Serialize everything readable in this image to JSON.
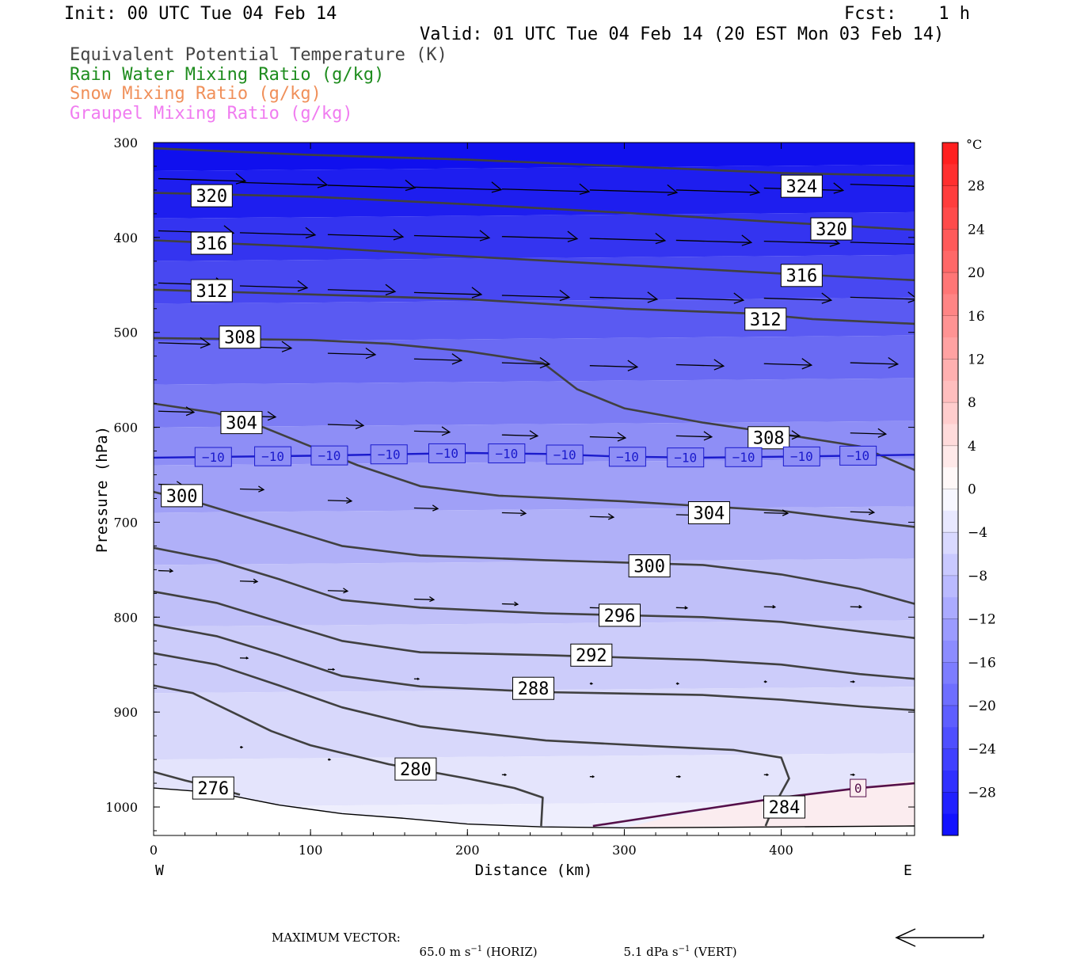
{
  "header": {
    "init": "Init: 00 UTC Tue 04 Feb 14",
    "fcst": "Fcst:    1 h",
    "valid": "Valid: 01 UTC Tue 04 Feb 14 (20 EST Mon 03 Feb 14)",
    "fields": [
      {
        "label": "Equivalent Potential Temperature (K)",
        "color": "#444444"
      },
      {
        "label": "Rain Water Mixing Ratio (g/kg)",
        "color": "#1e8c1e"
      },
      {
        "label": "Snow Mixing Ratio (g/kg)",
        "color": "#f0905a"
      },
      {
        "label": "Graupel Mixing Ratio (g/kg)",
        "color": "#f07cf0"
      }
    ]
  },
  "chart_data": {
    "type": "cross-section",
    "xlabel": "Distance (km)",
    "ylabel": "Pressure (hPa)",
    "xlim": [
      0,
      485
    ],
    "ylim": [
      300,
      1030
    ],
    "y_log": false,
    "x_ticks": [
      0,
      100,
      200,
      300,
      400
    ],
    "y_ticks": [
      300,
      400,
      500,
      600,
      700,
      800,
      900,
      1000
    ],
    "x_end_labels": {
      "left": "W",
      "right": "E"
    },
    "colorbar": {
      "unit": "°C",
      "tick_labels": [
        "28",
        "24",
        "20",
        "16",
        "12",
        "8",
        "4",
        "0",
        "−4",
        "−8",
        "−12",
        "−16",
        "−20",
        "−24",
        "−28"
      ],
      "range": [
        -32,
        32
      ]
    },
    "theta_e_contours": [
      {
        "level": 324,
        "label": "324",
        "points": [
          [
            0,
            306
          ],
          [
            100,
            313
          ],
          [
            200,
            318
          ],
          [
            300,
            325
          ],
          [
            400,
            332
          ],
          [
            485,
            335
          ]
        ],
        "label_at": [
          413,
          346
        ]
      },
      {
        "level": 320,
        "label": "320",
        "points": [
          [
            0,
            353
          ],
          [
            100,
            357
          ],
          [
            200,
            365
          ],
          [
            300,
            374
          ],
          [
            400,
            384
          ],
          [
            485,
            392
          ]
        ],
        "label_at": [
          37,
          356
        ],
        "label_at2": [
          432,
          391
        ]
      },
      {
        "level": 316,
        "label": "316",
        "points": [
          [
            0,
            403
          ],
          [
            100,
            410
          ],
          [
            200,
            420
          ],
          [
            300,
            429
          ],
          [
            400,
            438
          ],
          [
            485,
            445
          ]
        ],
        "label_at": [
          37,
          406
        ],
        "label_at2": [
          413,
          440
        ]
      },
      {
        "level": 312,
        "label": "312",
        "points": [
          [
            0,
            455
          ],
          [
            100,
            460
          ],
          [
            200,
            465
          ],
          [
            300,
            475
          ],
          [
            380,
            480
          ],
          [
            420,
            486
          ],
          [
            485,
            491
          ]
        ],
        "label_at": [
          37,
          456
        ],
        "label_at2": [
          390,
          486
        ]
      },
      {
        "level": 308,
        "label": "308",
        "points": [
          [
            0,
            506
          ],
          [
            100,
            508
          ],
          [
            150,
            512
          ],
          [
            200,
            520
          ],
          [
            248,
            532
          ],
          [
            270,
            560
          ],
          [
            300,
            580
          ],
          [
            350,
            595
          ],
          [
            400,
            607
          ],
          [
            450,
            620
          ],
          [
            485,
            645
          ]
        ],
        "label_at": [
          55,
          505
        ],
        "label_at2": [
          392,
          611
        ]
      },
      {
        "level": 304,
        "label": "304",
        "points": [
          [
            0,
            575
          ],
          [
            40,
            585
          ],
          [
            70,
            600
          ],
          [
            100,
            620
          ],
          [
            130,
            640
          ],
          [
            170,
            662
          ],
          [
            220,
            672
          ],
          [
            300,
            678
          ],
          [
            400,
            688
          ],
          [
            485,
            705
          ]
        ],
        "label_at": [
          56,
          595
        ],
        "label_at2": [
          354,
          690
        ]
      },
      {
        "level": 300,
        "label": "300",
        "points": [
          [
            0,
            668
          ],
          [
            30,
            680
          ],
          [
            70,
            700
          ],
          [
            120,
            725
          ],
          [
            170,
            735
          ],
          [
            250,
            740
          ],
          [
            350,
            745
          ],
          [
            400,
            755
          ],
          [
            450,
            770
          ],
          [
            485,
            786
          ]
        ],
        "label_at": [
          18,
          672
        ],
        "label_at2": [
          316,
          746
        ]
      },
      {
        "level": 296,
        "label": "296",
        "points": [
          [
            0,
            727
          ],
          [
            40,
            740
          ],
          [
            80,
            760
          ],
          [
            120,
            782
          ],
          [
            170,
            790
          ],
          [
            250,
            796
          ],
          [
            350,
            800
          ],
          [
            400,
            805
          ],
          [
            450,
            815
          ],
          [
            485,
            822
          ]
        ],
        "label_at": [
          297,
          798
        ]
      },
      {
        "level": 292,
        "label": "292",
        "points": [
          [
            0,
            773
          ],
          [
            40,
            785
          ],
          [
            80,
            805
          ],
          [
            120,
            825
          ],
          [
            170,
            837
          ],
          [
            250,
            840
          ],
          [
            350,
            845
          ],
          [
            400,
            850
          ],
          [
            450,
            860
          ],
          [
            485,
            865
          ]
        ],
        "label_at": [
          279,
          840
        ]
      },
      {
        "level": 288,
        "label": "288",
        "points": [
          [
            0,
            808
          ],
          [
            40,
            820
          ],
          [
            80,
            840
          ],
          [
            120,
            862
          ],
          [
            170,
            873
          ],
          [
            250,
            879
          ],
          [
            350,
            882
          ],
          [
            400,
            887
          ],
          [
            450,
            894
          ],
          [
            485,
            898
          ]
        ],
        "label_at": [
          242,
          875
        ]
      },
      {
        "level": 284,
        "label": "284",
        "points": [
          [
            0,
            838
          ],
          [
            40,
            850
          ],
          [
            80,
            872
          ],
          [
            120,
            895
          ],
          [
            170,
            915
          ],
          [
            250,
            930
          ],
          [
            320,
            936
          ],
          [
            370,
            940
          ],
          [
            400,
            948
          ],
          [
            405,
            970
          ],
          [
            395,
            1000
          ],
          [
            390,
            1020
          ]
        ],
        "label_at": [
          402,
          1000
        ]
      },
      {
        "level": 280,
        "label": "280",
        "points": [
          [
            0,
            872
          ],
          [
            25,
            880
          ],
          [
            50,
            900
          ],
          [
            75,
            920
          ],
          [
            100,
            935
          ],
          [
            150,
            955
          ],
          [
            200,
            970
          ],
          [
            230,
            980
          ],
          [
            248,
            990
          ],
          [
            247,
            1020
          ]
        ],
        "label_at": [
          167,
          960
        ]
      },
      {
        "level": 276,
        "label": "276",
        "points": [
          [
            0,
            963
          ],
          [
            20,
            972
          ],
          [
            40,
            980
          ],
          [
            55,
            987
          ]
        ],
        "label_at": [
          38,
          980
        ]
      }
    ],
    "isotherm_minus10": {
      "level": -10,
      "label": "−10",
      "points": [
        [
          0,
          632
        ],
        [
          100,
          630
        ],
        [
          200,
          627
        ],
        [
          250,
          628
        ],
        [
          300,
          631
        ],
        [
          350,
          632
        ],
        [
          400,
          631
        ],
        [
          485,
          629
        ]
      ],
      "label_x": [
        38,
        76,
        112,
        150,
        187,
        225,
        262,
        302,
        339,
        376,
        413,
        449
      ]
    },
    "isotherm_zero": {
      "level": 0,
      "label": "0",
      "points": [
        [
          280,
          1020
        ],
        [
          320,
          1010
        ],
        [
          360,
          1000
        ],
        [
          400,
          990
        ],
        [
          450,
          980
        ],
        [
          485,
          975
        ]
      ],
      "label_at": [
        449,
        980
      ]
    },
    "ground_pressure": [
      [
        0,
        980
      ],
      [
        40,
        985
      ],
      [
        80,
        998
      ],
      [
        120,
        1007
      ],
      [
        160,
        1012
      ],
      [
        200,
        1018
      ],
      [
        248,
        1021
      ],
      [
        300,
        1022
      ],
      [
        400,
        1021
      ],
      [
        485,
        1020
      ]
    ],
    "wind_vectors": [
      {
        "x": 3,
        "p": 338,
        "len": 110
      },
      {
        "x": 55,
        "p": 342,
        "len": 110
      },
      {
        "x": 111,
        "p": 345,
        "len": 110
      },
      {
        "x": 166,
        "p": 347,
        "len": 110
      },
      {
        "x": 222,
        "p": 349,
        "len": 110
      },
      {
        "x": 278,
        "p": 350,
        "len": 110
      },
      {
        "x": 333,
        "p": 350,
        "len": 105
      },
      {
        "x": 389,
        "p": 348,
        "len": 100
      },
      {
        "x": 444,
        "p": 344,
        "len": 100
      },
      {
        "x": 3,
        "p": 393,
        "len": 95
      },
      {
        "x": 55,
        "p": 395,
        "len": 95
      },
      {
        "x": 111,
        "p": 397,
        "len": 95
      },
      {
        "x": 166,
        "p": 398,
        "len": 95
      },
      {
        "x": 222,
        "p": 399,
        "len": 95
      },
      {
        "x": 278,
        "p": 401,
        "len": 95
      },
      {
        "x": 333,
        "p": 403,
        "len": 95
      },
      {
        "x": 389,
        "p": 404,
        "len": 95
      },
      {
        "x": 444,
        "p": 405,
        "len": 95
      },
      {
        "x": 3,
        "p": 448,
        "len": 85
      },
      {
        "x": 55,
        "p": 451,
        "len": 85
      },
      {
        "x": 111,
        "p": 455,
        "len": 85
      },
      {
        "x": 166,
        "p": 458,
        "len": 85
      },
      {
        "x": 222,
        "p": 461,
        "len": 85
      },
      {
        "x": 278,
        "p": 463,
        "len": 85
      },
      {
        "x": 333,
        "p": 464,
        "len": 85
      },
      {
        "x": 389,
        "p": 464,
        "len": 85
      },
      {
        "x": 444,
        "p": 463,
        "len": 85
      },
      {
        "x": 3,
        "p": 511,
        "len": 65
      },
      {
        "x": 55,
        "p": 515,
        "len": 65
      },
      {
        "x": 111,
        "p": 522,
        "len": 60
      },
      {
        "x": 166,
        "p": 528,
        "len": 60
      },
      {
        "x": 222,
        "p": 532,
        "len": 60
      },
      {
        "x": 278,
        "p": 535,
        "len": 60
      },
      {
        "x": 333,
        "p": 534,
        "len": 60
      },
      {
        "x": 389,
        "p": 533,
        "len": 60
      },
      {
        "x": 444,
        "p": 532,
        "len": 60
      },
      {
        "x": 3,
        "p": 583,
        "len": 45
      },
      {
        "x": 55,
        "p": 588,
        "len": 45
      },
      {
        "x": 111,
        "p": 597,
        "len": 45
      },
      {
        "x": 166,
        "p": 604,
        "len": 45
      },
      {
        "x": 222,
        "p": 608,
        "len": 45
      },
      {
        "x": 278,
        "p": 610,
        "len": 45
      },
      {
        "x": 333,
        "p": 609,
        "len": 45
      },
      {
        "x": 389,
        "p": 608,
        "len": 45
      },
      {
        "x": 444,
        "p": 606,
        "len": 45
      },
      {
        "x": 3,
        "p": 660,
        "len": 30
      },
      {
        "x": 55,
        "p": 665,
        "len": 30
      },
      {
        "x": 111,
        "p": 677,
        "len": 30
      },
      {
        "x": 166,
        "p": 685,
        "len": 30
      },
      {
        "x": 222,
        "p": 690,
        "len": 30
      },
      {
        "x": 278,
        "p": 694,
        "len": 30
      },
      {
        "x": 333,
        "p": 692,
        "len": 30
      },
      {
        "x": 389,
        "p": 690,
        "len": 30
      },
      {
        "x": 444,
        "p": 689,
        "len": 30
      },
      {
        "x": 3,
        "p": 751,
        "len": 18
      },
      {
        "x": 55,
        "p": 762,
        "len": 22
      },
      {
        "x": 111,
        "p": 772,
        "len": 25
      },
      {
        "x": 166,
        "p": 781,
        "len": 25
      },
      {
        "x": 222,
        "p": 786,
        "len": 20
      },
      {
        "x": 278,
        "p": 790,
        "len": 18
      },
      {
        "x": 333,
        "p": 790,
        "len": 14
      },
      {
        "x": 389,
        "p": 789,
        "len": 14
      },
      {
        "x": 444,
        "p": 789,
        "len": 14
      },
      {
        "x": 55,
        "p": 843,
        "len": 10
      },
      {
        "x": 111,
        "p": 855,
        "len": 8
      },
      {
        "x": 166,
        "p": 865,
        "len": 6
      },
      {
        "x": 278,
        "p": 870,
        "len": 3
      },
      {
        "x": 333,
        "p": 870,
        "len": 3
      },
      {
        "x": 389,
        "p": 868,
        "len": 3
      },
      {
        "x": 444,
        "p": 868,
        "len": 5
      },
      {
        "x": 55,
        "p": 937,
        "len": 3
      },
      {
        "x": 111,
        "p": 950,
        "len": 3
      },
      {
        "x": 166,
        "p": 962,
        "len": 5
      },
      {
        "x": 222,
        "p": 966,
        "len": 5
      },
      {
        "x": 278,
        "p": 968,
        "len": 5
      },
      {
        "x": 333,
        "p": 968,
        "len": 5
      },
      {
        "x": 389,
        "p": 966,
        "len": 5
      },
      {
        "x": 444,
        "p": 966,
        "len": 5
      }
    ]
  },
  "footer": {
    "max_vector_label": "MAXIMUM VECTOR:",
    "horiz_value": "65.0 m s",
    "horiz_exp": "−1",
    "horiz_suffix": "(HORIZ)",
    "vert_value": "5.1 dPa s",
    "vert_exp": "−1",
    "vert_suffix": "(VERT)"
  }
}
